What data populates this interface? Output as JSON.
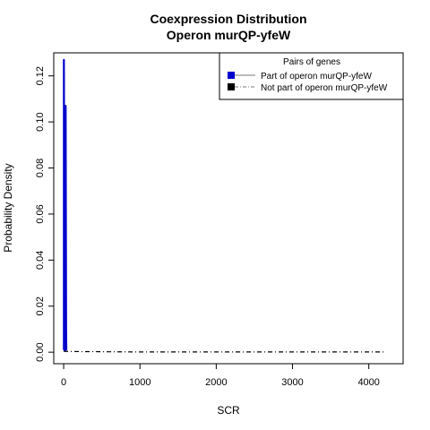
{
  "chart_data": {
    "type": "line",
    "title": "Coexpression Distribution",
    "subtitle": "Operon murQP-yfeW",
    "xlabel": "SCR",
    "ylabel": "Probability Density",
    "xlim": [
      -130,
      4450
    ],
    "ylim": [
      -0.005,
      0.13
    ],
    "xticks": [
      0,
      1000,
      2000,
      3000,
      4000
    ],
    "xtick_labels": [
      "0",
      "1000",
      "2000",
      "3000",
      "4000"
    ],
    "yticks": [
      0.0,
      0.02,
      0.04,
      0.06,
      0.08,
      0.1,
      0.12
    ],
    "ytick_labels": [
      "0.00",
      "0.02",
      "0.04",
      "0.06",
      "0.08",
      "0.10",
      "0.12"
    ],
    "grid": false,
    "legend": {
      "title": "Pairs of genes",
      "placement": "top-right",
      "entries": [
        "Part of operon murQP-yfeW",
        "Not part of operon murQP-yfeW"
      ]
    },
    "series": [
      {
        "name": "Part of operon murQP-yfeW",
        "color": "#0000cc",
        "style": "solid",
        "x": [
          0,
          2,
          2,
          4,
          6,
          8,
          9,
          9,
          11,
          13,
          15,
          17,
          20,
          22,
          25,
          25,
          27,
          30,
          33,
          36,
          38
        ],
        "y": [
          0.001,
          0.001,
          0.127,
          0.127,
          0.1,
          0.02,
          0.001,
          0.001,
          0.001,
          0.001,
          0.001,
          0.001,
          0.001,
          0.001,
          0.001,
          0.107,
          0.107,
          0.06,
          0.01,
          0.001,
          0.001
        ]
      },
      {
        "name": "Not part of operon murQP-yfeW",
        "color": "#000000",
        "style": "dashed",
        "x": [
          0,
          100,
          500,
          1000,
          2000,
          3000,
          4000,
          4200
        ],
        "y": [
          0.0004,
          0.0003,
          0.0002,
          0.0001,
          0.0001,
          0.0001,
          0.0001,
          0.0001
        ]
      }
    ]
  }
}
